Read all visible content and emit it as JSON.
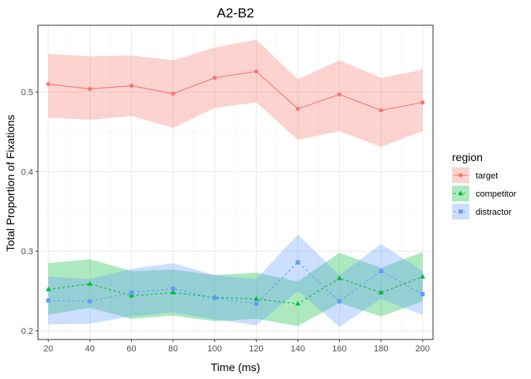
{
  "chart_data": {
    "type": "line",
    "title": "A2-B2",
    "xlabel": "Time (ms)",
    "ylabel": "Total Proportion of Fixations",
    "x": [
      20,
      40,
      60,
      80,
      100,
      120,
      140,
      160,
      180,
      200
    ],
    "x_ticks": [
      "20",
      "40",
      "60",
      "80",
      "100",
      "120",
      "140",
      "160",
      "180",
      "200"
    ],
    "y_ticks": [
      "0.2",
      "0.3",
      "0.4",
      "0.5"
    ],
    "xlim": [
      15,
      205
    ],
    "ylim": [
      0.189,
      0.584
    ],
    "grid": true,
    "legend": {
      "title": "region",
      "position": "right"
    },
    "series": [
      {
        "name": "target",
        "color": "#F8766D",
        "marker": "circle",
        "line_style": "solid",
        "values": [
          0.51,
          0.504,
          0.508,
          0.498,
          0.518,
          0.526,
          0.479,
          0.497,
          0.477,
          0.487
        ],
        "lower": [
          0.468,
          0.465,
          0.47,
          0.455,
          0.48,
          0.487,
          0.44,
          0.451,
          0.431,
          0.451
        ],
        "upper": [
          0.548,
          0.545,
          0.546,
          0.54,
          0.556,
          0.566,
          0.516,
          0.54,
          0.518,
          0.528
        ]
      },
      {
        "name": "competitor",
        "color": "#00BA38",
        "marker": "triangle",
        "line_style": "dashed",
        "values": [
          0.252,
          0.259,
          0.244,
          0.248,
          0.242,
          0.24,
          0.234,
          0.266,
          0.248,
          0.268
        ],
        "lower": [
          0.22,
          0.229,
          0.215,
          0.219,
          0.212,
          0.215,
          0.206,
          0.235,
          0.218,
          0.237
        ],
        "upper": [
          0.285,
          0.29,
          0.275,
          0.277,
          0.27,
          0.273,
          0.262,
          0.298,
          0.279,
          0.299
        ]
      },
      {
        "name": "distractor",
        "color": "#619CFF",
        "marker": "square",
        "line_style": "dashed",
        "values": [
          0.238,
          0.237,
          0.248,
          0.253,
          0.241,
          0.234,
          0.286,
          0.237,
          0.275,
          0.246
        ],
        "lower": [
          0.208,
          0.209,
          0.218,
          0.223,
          0.214,
          0.207,
          0.25,
          0.205,
          0.24,
          0.22
        ],
        "upper": [
          0.268,
          0.265,
          0.278,
          0.285,
          0.27,
          0.265,
          0.321,
          0.27,
          0.309,
          0.275
        ]
      }
    ]
  }
}
